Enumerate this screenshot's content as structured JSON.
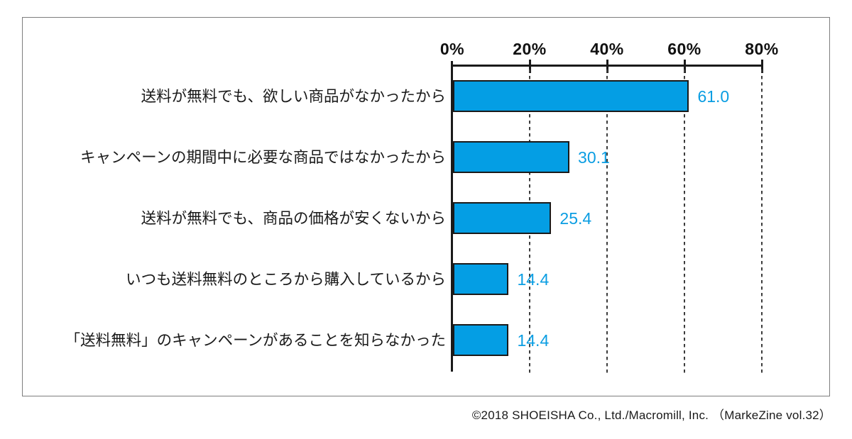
{
  "chart_data": {
    "type": "bar",
    "orientation": "horizontal",
    "title": "",
    "xlabel": "",
    "ylabel": "",
    "categories": [
      "送料が無料でも、欲しい商品がなかったから",
      "キャンペーンの期間中に必要な商品ではなかったから",
      "送料が無料でも、商品の価格が安くないから",
      "いつも送料無料のところから購入しているから",
      "「送料無料」のキャンペーンがあることを知らなかった"
    ],
    "values": [
      61.0,
      30.1,
      25.4,
      14.4,
      14.4
    ],
    "value_labels": [
      "61.0",
      "30.1",
      "25.4",
      "14.4",
      "14.4"
    ],
    "x_ticks": [
      "0%",
      "20%",
      "40%",
      "60%",
      "80%"
    ],
    "xlim": [
      0,
      80
    ],
    "grid": "vertical-dashed",
    "legend": "none",
    "bar_color": "#049ee4",
    "bar_border_color": "#1a1a1a",
    "value_color": "#0a9de2",
    "axis_color": "#1a1a1a"
  },
  "footer": {
    "text": "©2018 SHOEISHA Co., Ltd./Macromill, Inc. （MarkeZine vol.32）"
  }
}
